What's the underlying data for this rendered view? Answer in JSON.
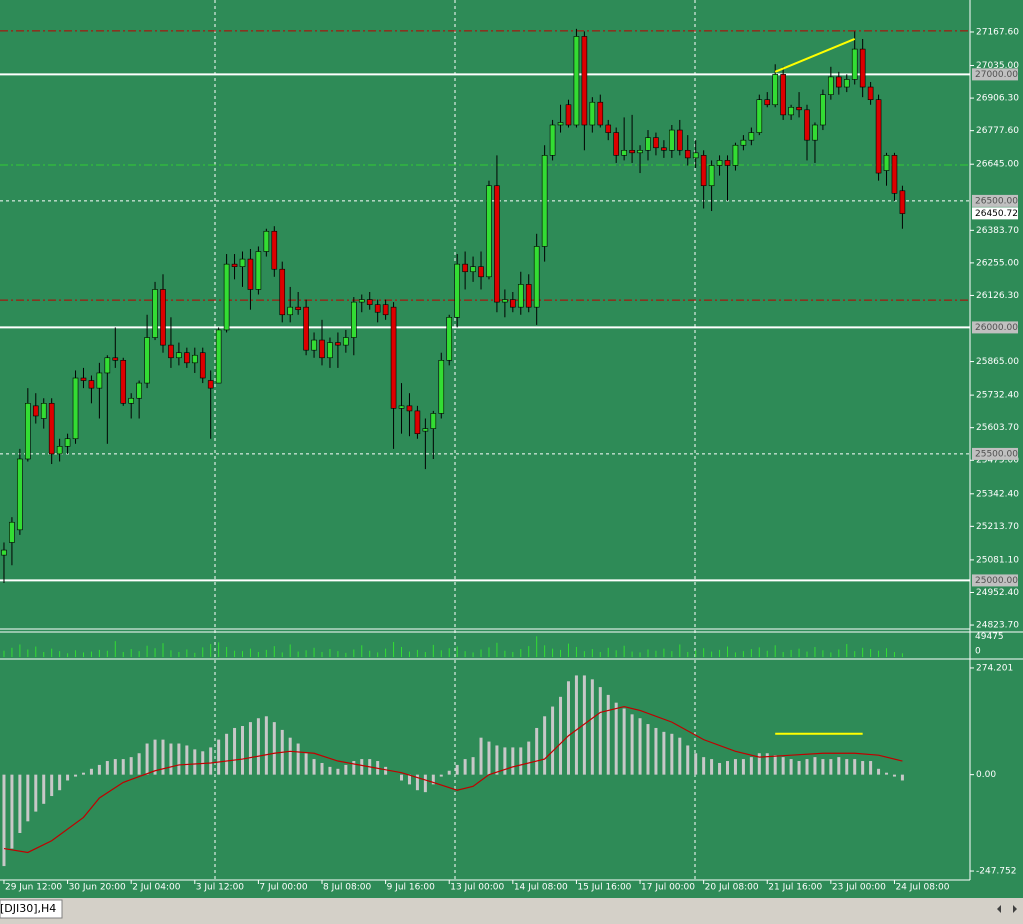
{
  "chart_data": {
    "type": "candlestick",
    "symbol_tab": "[DJI30],H4",
    "background": "#2e8b57",
    "up_color": "#33dd33",
    "down_color": "#dd0000",
    "xlim": [
      -0.5,
      121.5
    ],
    "xticks": [
      {
        "value": 0,
        "label": "29 Jun 12:00"
      },
      {
        "value": 8,
        "label": "30 Jun 20:00"
      },
      {
        "value": 16,
        "label": "2 Jul 04:00"
      },
      {
        "value": 24,
        "label": "3 Jul 12:00"
      },
      {
        "value": 32,
        "label": "7 Jul 00:00"
      },
      {
        "value": 40,
        "label": "8 Jul 08:00"
      },
      {
        "value": 48,
        "label": "9 Jul 16:00"
      },
      {
        "value": 56,
        "label": "13 Jul 00:00"
      },
      {
        "value": 64,
        "label": "14 Jul 08:00"
      },
      {
        "value": 72,
        "label": "15 Jul 16:00"
      },
      {
        "value": 80,
        "label": "17 Jul 00:00"
      },
      {
        "value": 88,
        "label": "20 Jul 08:00"
      },
      {
        "value": 96,
        "label": "21 Jul 16:00"
      },
      {
        "value": 104,
        "label": "23 Jul 00:00"
      },
      {
        "value": 112,
        "label": "24 Jul 08:00"
      }
    ],
    "ylim": [
      24812,
      27294
    ],
    "yticks": [
      {
        "value": 27167.6,
        "label": "27167.60"
      },
      {
        "value": 27035,
        "label": "27035.00"
      },
      {
        "value": 26906.3,
        "label": "26906.30"
      },
      {
        "value": 26777.6,
        "label": "26777.60"
      },
      {
        "value": 26645,
        "label": "26645.00"
      },
      {
        "value": 26383.7,
        "label": "26383.70"
      },
      {
        "value": 26255,
        "label": "26255.00"
      },
      {
        "value": 26126.3,
        "label": "26126.30"
      },
      {
        "value": 25865,
        "label": "25865.00"
      },
      {
        "value": 25732.4,
        "label": "25732.40"
      },
      {
        "value": 25603.7,
        "label": "25603.70"
      },
      {
        "value": 25475,
        "label": "25475.00"
      },
      {
        "value": 25342.4,
        "label": "25342.40"
      },
      {
        "value": 25213.7,
        "label": "25213.70"
      },
      {
        "value": 25081.1,
        "label": "25081.10"
      },
      {
        "value": 24952.4,
        "label": "24952.40"
      },
      {
        "value": 24823.7,
        "label": "24823.70"
      }
    ],
    "levels": [
      {
        "value": 27000,
        "label": "27000.00",
        "style": "solid"
      },
      {
        "value": 26500,
        "label": "26500.00",
        "style": "dashed"
      },
      {
        "value": 26000,
        "label": "26000.00",
        "style": "solid"
      },
      {
        "value": 25500,
        "label": "25500.00",
        "style": "dashed"
      },
      {
        "value": 25000,
        "label": "25000.00",
        "style": "solid"
      }
    ],
    "lines": [
      {
        "value": 27172,
        "style": "dash-dot",
        "color": "#c00000"
      },
      {
        "value": 26642,
        "style": "dash-dot",
        "color": "#33cc33"
      },
      {
        "value": 26108,
        "style": "dash-dot",
        "color": "#c00000"
      }
    ],
    "current_price": 26450.72,
    "open": [
      25100,
      25150,
      25200,
      25480,
      25690,
      25640,
      25700,
      25500,
      25530,
      25560,
      25800,
      25790,
      25760,
      25820,
      25880,
      25870,
      25700,
      25720,
      25780,
      25960,
      26150,
      25930,
      25880,
      25900,
      25860,
      25900,
      25790,
      25780,
      25990,
      26250,
      26240,
      26270,
      26150,
      26300,
      26380,
      26230,
      26050,
      26080,
      26080,
      25910,
      25950,
      25880,
      25940,
      25930,
      25960,
      26100,
      26110,
      26090,
      26090,
      26080,
      25680,
      25690,
      25670,
      25590,
      25600,
      25660,
      25870,
      26040,
      26250,
      26220,
      26240,
      26200,
      26560,
      26100,
      26110,
      26080,
      26170,
      26080,
      26320,
      26680,
      26800,
      26880,
      26800,
      27150,
      26800,
      26890,
      26800,
      26770,
      26680,
      26700,
      26690,
      26700,
      26750,
      26710,
      26700,
      26780,
      26700,
      26670,
      26680,
      26560,
      26640,
      26660,
      26640,
      26720,
      26740,
      26770,
      26900,
      26880,
      27000,
      26840,
      26870,
      26860,
      26740,
      26800,
      26920,
      26990,
      26950,
      26980,
      27100,
      26950,
      26900,
      26620,
      26680,
      26540
    ],
    "high": [
      25150,
      25250,
      25520,
      25760,
      25740,
      25720,
      25720,
      25560,
      25580,
      25830,
      25840,
      25810,
      25860,
      25890,
      26000,
      25880,
      25740,
      25790,
      26050,
      26180,
      26210,
      26040,
      25940,
      25920,
      25920,
      25920,
      25830,
      26000,
      26290,
      26290,
      26300,
      26310,
      26320,
      26390,
      26400,
      26260,
      26160,
      26140,
      26110,
      25980,
      26030,
      25960,
      25980,
      25990,
      26120,
      26130,
      26140,
      26110,
      26110,
      26100,
      25780,
      25740,
      25690,
      25640,
      25670,
      25900,
      26050,
      26290,
      26300,
      26280,
      26300,
      26580,
      26680,
      26150,
      26140,
      26220,
      26210,
      26370,
      26720,
      26820,
      26880,
      26900,
      27180,
      27170,
      26910,
      26920,
      26820,
      26790,
      26830,
      26840,
      26720,
      26780,
      26770,
      26740,
      26800,
      26820,
      26760,
      26740,
      26700,
      26660,
      26680,
      26680,
      26730,
      26760,
      26790,
      26920,
      26930,
      27040,
      27030,
      26880,
      26930,
      26880,
      26810,
      26940,
      27030,
      27010,
      27000,
      27170,
      27140,
      26970,
      26920,
      26690,
      26690,
      26560
    ],
    "low": [
      24990,
      25060,
      25180,
      25470,
      25620,
      25600,
      25460,
      25470,
      25500,
      25540,
      25760,
      25700,
      25640,
      25540,
      25840,
      25690,
      25640,
      25640,
      25760,
      25950,
      25900,
      25840,
      25850,
      25840,
      25820,
      25780,
      25560,
      25780,
      25980,
      26190,
      26160,
      26070,
      26130,
      26280,
      26200,
      26020,
      26020,
      26050,
      25890,
      25880,
      25850,
      25840,
      25840,
      25900,
      25890,
      26060,
      26070,
      26020,
      26030,
      25520,
      25580,
      25570,
      25560,
      25440,
      25480,
      25640,
      25850,
      26000,
      26150,
      26180,
      26150,
      26190,
      26060,
      26040,
      26060,
      26050,
      26060,
      26010,
      26260,
      26660,
      26770,
      26790,
      26790,
      26700,
      26770,
      26790,
      26740,
      26650,
      26660,
      26650,
      26610,
      26660,
      26680,
      26670,
      26670,
      26680,
      26640,
      26630,
      26470,
      26460,
      26600,
      26500,
      26620,
      26700,
      26720,
      26760,
      26870,
      26870,
      26820,
      26820,
      26830,
      26660,
      26650,
      26780,
      26900,
      26920,
      26930,
      26960,
      26910,
      26880,
      26580,
      26560,
      26500,
      26390
    ],
    "close": [
      25120,
      25230,
      25480,
      25700,
      25650,
      25700,
      25500,
      25530,
      25560,
      25800,
      25790,
      25760,
      25820,
      25880,
      25870,
      25700,
      25720,
      25780,
      25960,
      26150,
      25930,
      25880,
      25900,
      25860,
      25890,
      25800,
      25760,
      25990,
      26250,
      26240,
      26270,
      26150,
      26300,
      26380,
      26230,
      26050,
      26080,
      26070,
      25910,
      25950,
      25880,
      25940,
      25930,
      25960,
      26100,
      26110,
      26090,
      26060,
      26050,
      25680,
      25690,
      25670,
      25580,
      25600,
      25660,
      25870,
      26040,
      26250,
      26220,
      26240,
      26200,
      26560,
      26100,
      26110,
      26080,
      26170,
      26080,
      26320,
      26680,
      26800,
      26810,
      26800,
      27150,
      26800,
      26890,
      26800,
      26770,
      26680,
      26700,
      26690,
      26700,
      26750,
      26710,
      26700,
      26780,
      26700,
      26670,
      26690,
      26560,
      26640,
      26660,
      26640,
      26720,
      26740,
      26770,
      26900,
      26880,
      27000,
      26840,
      26870,
      26860,
      26740,
      26800,
      26920,
      26990,
      26950,
      26980,
      27100,
      26950,
      26900,
      26610,
      26680,
      26530,
      26450
    ],
    "trendline": {
      "x": [
        97,
        107
      ],
      "values": [
        27010,
        27140
      ],
      "color": "#ffff00"
    },
    "volume": {
      "color": "#33dd33",
      "ylim": [
        0,
        55000
      ],
      "yticks": [
        49475,
        0
      ],
      "values": [
        15000,
        22000,
        30000,
        18000,
        25000,
        12000,
        20000,
        14000,
        9000,
        16000,
        11000,
        13000,
        17000,
        15000,
        38000,
        12000,
        19000,
        14000,
        27000,
        21000,
        33000,
        16000,
        12000,
        18000,
        10000,
        23000,
        31000,
        35000,
        24000,
        15000,
        14000,
        20000,
        12000,
        17000,
        26000,
        11000,
        30000,
        13000,
        16000,
        22000,
        12000,
        19000,
        14000,
        10000,
        18000,
        28000,
        15000,
        11000,
        20000,
        36000,
        24000,
        13000,
        17000,
        12000,
        29000,
        16000,
        21000,
        25000,
        14000,
        11000,
        18000,
        23000,
        34000,
        15000,
        12000,
        19000,
        26000,
        49475,
        28000,
        20000,
        17000,
        32000,
        24000,
        14000,
        19000,
        12000,
        22000,
        16000,
        27000,
        13000,
        11000,
        18000,
        15000,
        20000,
        14000,
        30000,
        12000,
        16000,
        21000,
        13000,
        17000,
        25000,
        11000,
        14000,
        19000,
        23000,
        15000,
        28000,
        12000,
        17000,
        20000,
        13000,
        24000,
        16000,
        11000,
        18000,
        31000,
        14000,
        22000,
        19000,
        15000,
        21000,
        12000,
        9000
      ]
    },
    "macd": {
      "color": "#c8c8c8",
      "ylim": [
        -270.8,
        292.1
      ],
      "yticks": [
        274.201,
        {
          "value": 0,
          "label": "0.00"
        },
        -247.752
      ],
      "histogram": [
        -235,
        -190,
        -150,
        -120,
        -95,
        -75,
        -55,
        -40,
        -15,
        -5,
        5,
        15,
        25,
        35,
        40,
        40,
        45,
        55,
        80,
        90,
        90,
        80,
        80,
        75,
        65,
        60,
        70,
        90,
        105,
        120,
        125,
        135,
        145,
        150,
        135,
        115,
        95,
        80,
        55,
        40,
        30,
        20,
        15,
        25,
        35,
        40,
        40,
        35,
        20,
        0,
        -15,
        -25,
        -40,
        -45,
        -25,
        -5,
        10,
        25,
        40,
        45,
        95,
        85,
        75,
        70,
        70,
        70,
        85,
        120,
        150,
        175,
        200,
        240,
        255,
        255,
        245,
        225,
        205,
        185,
        170,
        155,
        145,
        130,
        120,
        110,
        105,
        95,
        75,
        55,
        45,
        40,
        30,
        35,
        40,
        40,
        45,
        55,
        55,
        50,
        45,
        40,
        35,
        40,
        45,
        40,
        40,
        45,
        40,
        40,
        35,
        35,
        15,
        5,
        -5,
        -15
      ],
      "signal": {
        "color": "#c00000",
        "x": [
          0,
          3,
          6,
          10,
          12,
          15,
          19,
          22,
          26,
          30,
          34,
          36,
          39,
          42,
          46,
          50,
          54,
          57,
          59,
          61,
          64,
          68,
          71,
          75,
          78,
          80,
          84,
          88,
          92,
          95,
          99,
          103,
          107,
          110,
          113
        ],
        "values": [
          -190,
          -200,
          -170,
          -110,
          -60,
          -20,
          10,
          25,
          30,
          40,
          55,
          60,
          55,
          35,
          20,
          5,
          -20,
          -40,
          -30,
          0,
          20,
          40,
          100,
          160,
          175,
          165,
          135,
          90,
          60,
          45,
          50,
          55,
          55,
          50,
          35
        ]
      },
      "trendline": {
        "x": [
          97,
          108
        ],
        "values": [
          105,
          105
        ],
        "color": "#ffff00"
      }
    }
  }
}
